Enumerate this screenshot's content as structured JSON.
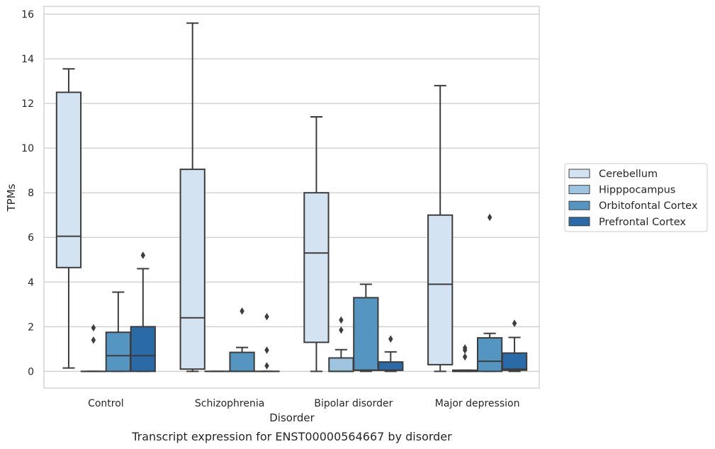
{
  "chart_data": {
    "type": "box",
    "xlabel": "Disorder",
    "ylabel": "TPMs",
    "caption": "Transcript expression for ENST00000564667 by disorder",
    "ylim": [
      -0.75,
      16.35
    ],
    "yticks": [
      0,
      2,
      4,
      6,
      8,
      10,
      12,
      14,
      16
    ],
    "grid": "horizontal",
    "legend_position": "right",
    "categories": [
      "Control",
      "Schizophrenia",
      "Bipolar disorder",
      "Major depression"
    ],
    "series": [
      {
        "name": "Cerebellum",
        "color": "#d3e3f2",
        "boxes": [
          {
            "whislo": 0.15,
            "q1": 4.65,
            "med": 6.05,
            "q3": 12.5,
            "whishi": 13.55,
            "fliers": []
          },
          {
            "whislo": 0.0,
            "q1": 0.1,
            "med": 2.4,
            "q3": 9.05,
            "whishi": 15.6,
            "fliers": []
          },
          {
            "whislo": 0.0,
            "q1": 1.3,
            "med": 5.3,
            "q3": 8.0,
            "whishi": 11.4,
            "fliers": []
          },
          {
            "whislo": 0.0,
            "q1": 0.3,
            "med": 3.9,
            "q3": 7.0,
            "whishi": 12.8,
            "fliers": []
          }
        ]
      },
      {
        "name": "Hipppocampus",
        "color": "#9ec5df",
        "boxes": [
          {
            "whislo": 0.0,
            "q1": 0.0,
            "med": 0.0,
            "q3": 0.0,
            "whishi": 0.0,
            "fliers": [
              1.4,
              1.95
            ]
          },
          {
            "whislo": 0.0,
            "q1": 0.0,
            "med": 0.0,
            "q3": 0.0,
            "whishi": 0.0,
            "fliers": []
          },
          {
            "whislo": 0.0,
            "q1": 0.0,
            "med": 0.0,
            "q3": 0.6,
            "whishi": 0.97,
            "fliers": [
              1.85,
              2.3
            ]
          },
          {
            "whislo": 0.0,
            "q1": 0.0,
            "med": 0.0,
            "q3": 0.05,
            "whishi": 0.05,
            "fliers": [
              0.65,
              0.95,
              1.05
            ]
          }
        ]
      },
      {
        "name": "Orbitofontal Cortex",
        "color": "#5495c2",
        "boxes": [
          {
            "whislo": 0.0,
            "q1": 0.0,
            "med": 0.7,
            "q3": 1.75,
            "whishi": 3.55,
            "fliers": []
          },
          {
            "whislo": 0.0,
            "q1": 0.0,
            "med": 0.0,
            "q3": 0.85,
            "whishi": 1.07,
            "fliers": [
              2.7
            ]
          },
          {
            "whislo": 0.0,
            "q1": 0.05,
            "med": 0.05,
            "q3": 3.3,
            "whishi": 3.9,
            "fliers": []
          },
          {
            "whislo": 0.0,
            "q1": 0.0,
            "med": 0.45,
            "q3": 1.5,
            "whishi": 1.7,
            "fliers": [
              6.9
            ]
          }
        ]
      },
      {
        "name": "Prefrontal Cortex",
        "color": "#2a6aa6",
        "boxes": [
          {
            "whislo": 0.0,
            "q1": 0.0,
            "med": 0.7,
            "q3": 2.0,
            "whishi": 4.6,
            "fliers": [
              5.2
            ]
          },
          {
            "whislo": 0.0,
            "q1": 0.0,
            "med": 0.0,
            "q3": 0.0,
            "whishi": 0.0,
            "fliers": [
              0.25,
              0.95,
              2.45
            ]
          },
          {
            "whislo": 0.0,
            "q1": 0.05,
            "med": 0.05,
            "q3": 0.42,
            "whishi": 0.87,
            "fliers": [
              1.45
            ]
          },
          {
            "whislo": 0.0,
            "q1": 0.05,
            "med": 0.1,
            "q3": 0.82,
            "whishi": 1.52,
            "fliers": [
              2.15
            ]
          }
        ]
      }
    ]
  }
}
